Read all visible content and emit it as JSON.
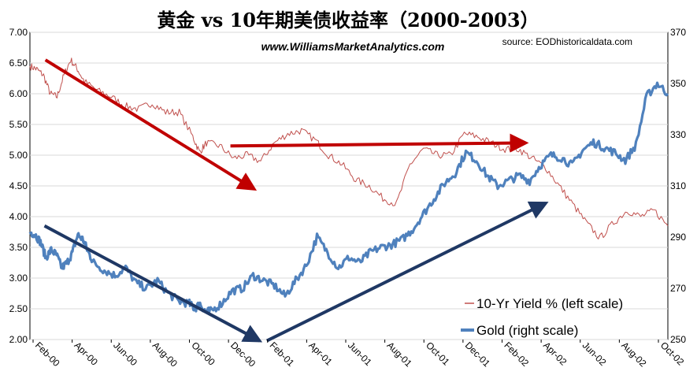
{
  "chart_data": {
    "type": "line",
    "title": "黄金 vs 10年期美债收益率（2000-2003）",
    "subtitle": "www.WilliamsMarketAnalytics.com",
    "source": "source: EODhistoricaldata.com",
    "x_tick_labels": [
      "Feb-00",
      "Apr-00",
      "Jun-00",
      "Aug-00",
      "Oct-00",
      "Dec-00",
      "Feb-01",
      "Apr-01",
      "Jun-01",
      "Aug-01",
      "Oct-01",
      "Dec-01",
      "Feb-02",
      "Apr-02",
      "Jun-02",
      "Aug-02",
      "Oct-02"
    ],
    "x_range_months": [
      0,
      35
    ],
    "left_axis": {
      "label": "10-Yr Yield %",
      "ylim": [
        2.0,
        7.0
      ],
      "tick_labels": [
        "2.00",
        "2.50",
        "3.00",
        "3.50",
        "4.00",
        "4.50",
        "5.00",
        "5.50",
        "6.00",
        "6.50",
        "7.00"
      ]
    },
    "right_axis": {
      "label": "Gold",
      "ylim": [
        250,
        370
      ],
      "tick_labels": [
        "250",
        "270",
        "290",
        "310",
        "330",
        "350",
        "370"
      ]
    },
    "series": [
      {
        "name": "10-Yr Yield % (left scale)",
        "axis": "left",
        "color": "#c0504d",
        "points": [
          [
            0,
            6.45
          ],
          [
            0.5,
            6.4
          ],
          [
            1,
            6.3
          ],
          [
            1.5,
            6.0
          ],
          [
            2,
            5.95
          ],
          [
            2.5,
            6.3
          ],
          [
            3,
            6.55
          ],
          [
            3.5,
            6.4
          ],
          [
            4,
            6.2
          ],
          [
            5,
            6.05
          ],
          [
            6,
            5.95
          ],
          [
            7,
            5.8
          ],
          [
            8,
            5.75
          ],
          [
            9,
            5.85
          ],
          [
            10,
            5.7
          ],
          [
            11,
            5.7
          ],
          [
            12,
            5.3
          ],
          [
            12.5,
            5.05
          ],
          [
            13,
            5.2
          ],
          [
            14,
            5.15
          ],
          [
            15,
            4.95
          ],
          [
            16,
            5.0
          ],
          [
            17,
            4.9
          ],
          [
            18,
            5.2
          ],
          [
            19,
            5.35
          ],
          [
            20,
            5.4
          ],
          [
            21,
            5.25
          ],
          [
            22,
            5.0
          ],
          [
            23,
            4.85
          ],
          [
            24,
            4.6
          ],
          [
            25,
            4.5
          ],
          [
            26,
            4.3
          ],
          [
            27,
            4.2
          ],
          [
            28,
            4.85
          ],
          [
            29,
            5.1
          ],
          [
            30,
            5.0
          ],
          [
            31,
            5.0
          ],
          [
            32,
            5.35
          ],
          [
            33,
            5.3
          ],
          [
            34,
            5.2
          ],
          [
            35,
            5.1
          ],
          [
            36,
            5.1
          ],
          [
            37,
            4.95
          ],
          [
            38,
            4.8
          ],
          [
            39,
            4.5
          ],
          [
            40,
            4.2
          ],
          [
            41,
            3.9
          ],
          [
            42,
            3.65
          ],
          [
            43,
            3.9
          ],
          [
            44,
            4.1
          ],
          [
            45,
            4.0
          ],
          [
            46,
            4.1
          ],
          [
            47,
            3.85
          ]
        ]
      },
      {
        "name": "Gold (right scale)",
        "axis": "right",
        "color": "#4f81bd",
        "points": [
          [
            0,
            292
          ],
          [
            0.5,
            291
          ],
          [
            1,
            288
          ],
          [
            1.5,
            282
          ],
          [
            2,
            285
          ],
          [
            2.5,
            283
          ],
          [
            3,
            278
          ],
          [
            3.5,
            280
          ],
          [
            4,
            284
          ],
          [
            4.5,
            291
          ],
          [
            5,
            289
          ],
          [
            5.5,
            284
          ],
          [
            6,
            280
          ],
          [
            7,
            277
          ],
          [
            8,
            275
          ],
          [
            9,
            278
          ],
          [
            10,
            272
          ],
          [
            11,
            270
          ],
          [
            12,
            273
          ],
          [
            13,
            268
          ],
          [
            14,
            265
          ],
          [
            15,
            264
          ],
          [
            15.5,
            262
          ],
          [
            16,
            264
          ],
          [
            16.5,
            261
          ],
          [
            17,
            261
          ],
          [
            18,
            264
          ],
          [
            19,
            269
          ],
          [
            20,
            270
          ],
          [
            21,
            275
          ],
          [
            22,
            273
          ],
          [
            23,
            271
          ],
          [
            24,
            267
          ],
          [
            25,
            273
          ],
          [
            26,
            279
          ],
          [
            27,
            290
          ],
          [
            28,
            284
          ],
          [
            29,
            278
          ],
          [
            30,
            282
          ],
          [
            31,
            280
          ],
          [
            32,
            284
          ],
          [
            33,
            286
          ],
          [
            34,
            287
          ],
          [
            35,
            289
          ],
          [
            36,
            293
          ],
          [
            37,
            299
          ],
          [
            38,
            305
          ],
          [
            39,
            311
          ],
          [
            40,
            315
          ],
          [
            41,
            323
          ],
          [
            42,
            320
          ],
          [
            43,
            314
          ],
          [
            44,
            310
          ],
          [
            45,
            312
          ],
          [
            46,
            314
          ],
          [
            47,
            312
          ],
          [
            48,
            318
          ],
          [
            49,
            322
          ],
          [
            50,
            321
          ],
          [
            51,
            318
          ],
          [
            52,
            324
          ],
          [
            53,
            327
          ],
          [
            54,
            325
          ],
          [
            55,
            323
          ],
          [
            56,
            320
          ],
          [
            57,
            326
          ],
          [
            58,
            345
          ],
          [
            59,
            350
          ],
          [
            60,
            346
          ]
        ]
      }
    ],
    "legend": [
      "10-Yr Yield % (left scale)",
      "Gold (right scale)"
    ],
    "annotations": [
      {
        "type": "arrow",
        "color": "#c00000",
        "from_xy": [
          0.85,
          6.55
        ],
        "to_xy": [
          12.3,
          4.45
        ],
        "axis": "left"
      },
      {
        "type": "arrow",
        "color": "#c00000",
        "from_xy": [
          11.0,
          5.15
        ],
        "to_xy": [
          27.2,
          5.2
        ],
        "axis": "left"
      },
      {
        "type": "arrow",
        "color": "#1f3864",
        "from_xy": [
          0.8,
          3.85
        ],
        "to_xy": [
          12.6,
          1.98
        ],
        "axis": "left"
      },
      {
        "type": "arrow",
        "color": "#1f3864",
        "from_xy": [
          13.0,
          1.98
        ],
        "to_xy": [
          28.3,
          4.22
        ],
        "axis": "left"
      }
    ]
  }
}
